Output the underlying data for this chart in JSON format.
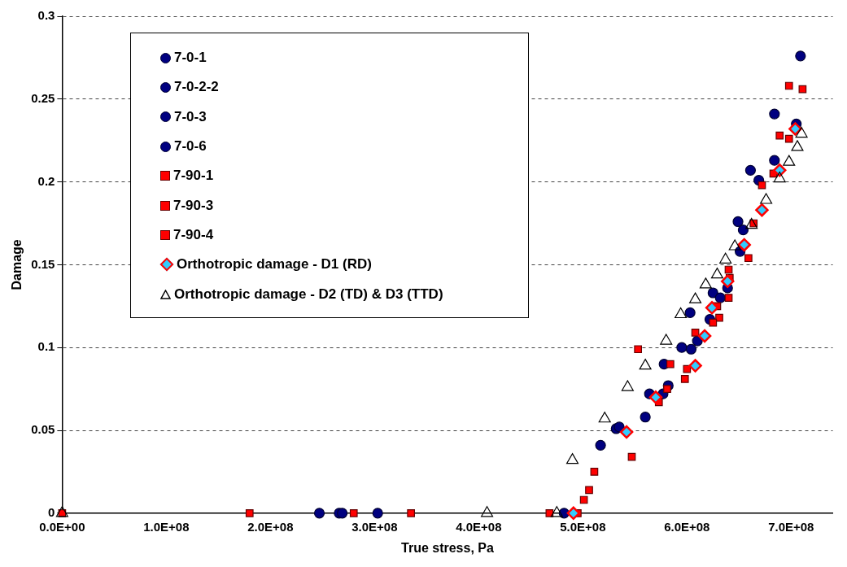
{
  "chart_data": {
    "type": "scatter",
    "xlabel": "True stress, Pa",
    "ylabel": "Damage",
    "xlim": [
      0,
      740000000.0
    ],
    "xticks": [
      {
        "value": 0,
        "label": "0.0E+00"
      },
      {
        "value": 100000000.0,
        "label": "1.0E+08"
      },
      {
        "value": 200000000.0,
        "label": "2.0E+08"
      },
      {
        "value": 300000000.0,
        "label": "3.0E+08"
      },
      {
        "value": 400000000.0,
        "label": "4.0E+08"
      },
      {
        "value": 500000000.0,
        "label": "5.0E+08"
      },
      {
        "value": 600000000.0,
        "label": "6.0E+08"
      },
      {
        "value": 700000000.0,
        "label": "7.0E+08"
      }
    ],
    "ylim": [
      0,
      0.3
    ],
    "yticks": [
      0,
      0.05,
      0.1,
      0.15,
      0.2,
      0.25,
      0.3
    ],
    "grid": "y",
    "legend": "top left",
    "series": [
      {
        "name": "7-0-1",
        "marker": "circle",
        "color": "#000080",
        "x": [
          247000000.0,
          482000000.0,
          560000000.0,
          578000000.0,
          603000000.0,
          625000000.0,
          669000000.0,
          705000000.0
        ],
        "values": [
          0,
          0,
          0.058,
          0.09,
          0.121,
          0.133,
          0.201,
          0.235
        ]
      },
      {
        "name": "7-0-2-2",
        "marker": "circle",
        "color": "#000080",
        "x": [
          266000000.0,
          517000000.0,
          564000000.0,
          595000000.0,
          622000000.0,
          651000000.0,
          661000000.0,
          709000000.0
        ],
        "values": [
          0,
          0.041,
          0.072,
          0.1,
          0.117,
          0.158,
          0.207,
          0.276
        ]
      },
      {
        "name": "7-0-3",
        "marker": "circle",
        "color": "#000080",
        "x": [
          269000000.0,
          532000000.0,
          577000000.0,
          604000000.0,
          632000000.0,
          654000000.0,
          684000000.0
        ],
        "values": [
          0,
          0.051,
          0.072,
          0.099,
          0.13,
          0.171,
          0.241
        ]
      },
      {
        "name": "7-0-6",
        "marker": "circle",
        "color": "#000080",
        "x": [
          303000000.0,
          535000000.0,
          582000000.0,
          610000000.0,
          639000000.0,
          649000000.0,
          684000000.0
        ],
        "values": [
          0,
          0.052,
          0.077,
          0.104,
          0.136,
          0.176,
          0.213
        ]
      },
      {
        "name": "7-90-1",
        "marker": "square",
        "color": "#ff0000",
        "x": [
          0,
          335000000.0,
          501000000.0,
          547000000.0,
          573000000.0,
          600000000.0,
          631000000.0,
          641000000.0,
          664000000.0,
          689000000.0,
          711000000.0
        ],
        "values": [
          0,
          0,
          0.008,
          0.034,
          0.067,
          0.087,
          0.118,
          0.142,
          0.175,
          0.228,
          0.256
        ]
      },
      {
        "name": "7-90-3",
        "marker": "square",
        "color": "#ff0000",
        "x": [
          180000000.0,
          468000000.0,
          506000000.0,
          553000000.0,
          581000000.0,
          608000000.0,
          629000000.0,
          640000000.0,
          672000000.0,
          698000000.0
        ],
        "values": [
          0,
          0,
          0.014,
          0.099,
          0.075,
          0.109,
          0.125,
          0.147,
          0.198,
          0.226
        ]
      },
      {
        "name": "7-90-4",
        "marker": "square",
        "color": "#ff0000",
        "x": [
          280000000.0,
          495000000.0,
          511000000.0,
          584000000.0,
          598000000.0,
          625000000.0,
          640000000.0,
          659000000.0,
          683000000.0,
          698000000.0
        ],
        "values": [
          0,
          0,
          0.025,
          0.09,
          0.081,
          0.115,
          0.13,
          0.154,
          0.205,
          0.258
        ]
      },
      {
        "name": "Orthotropic damage - D1 (RD)",
        "marker": "diamond",
        "color": "#33ccff",
        "x": [
          491000000.0,
          542000000.0,
          570000000.0,
          608000000.0,
          617000000.0,
          624000000.0,
          639000000.0,
          655000000.0,
          672000000.0,
          689000000.0,
          704000000.0
        ],
        "values": [
          0,
          0.049,
          0.07,
          0.089,
          0.107,
          0.124,
          0.14,
          0.162,
          0.183,
          0.207,
          0.232
        ]
      },
      {
        "name": "Orthotropic damage - D2 (TD) & D3 (TTD)",
        "marker": "triangle",
        "color": "#000000",
        "x": [
          0,
          408000000.0,
          475000000.0,
          490000000.0,
          521000000.0,
          543000000.0,
          560000000.0,
          580000000.0,
          594000000.0,
          608000000.0,
          618000000.0,
          629000000.0,
          637000000.0,
          646000000.0,
          662000000.0,
          676000000.0,
          689000000.0,
          698000000.0,
          706000000.0,
          710000000.0
        ],
        "values": [
          0,
          0,
          0,
          0.032,
          0.057,
          0.076,
          0.089,
          0.104,
          0.12,
          0.129,
          0.138,
          0.144,
          0.153,
          0.161,
          0.174,
          0.189,
          0.202,
          0.212,
          0.221,
          0.229
        ]
      }
    ]
  }
}
